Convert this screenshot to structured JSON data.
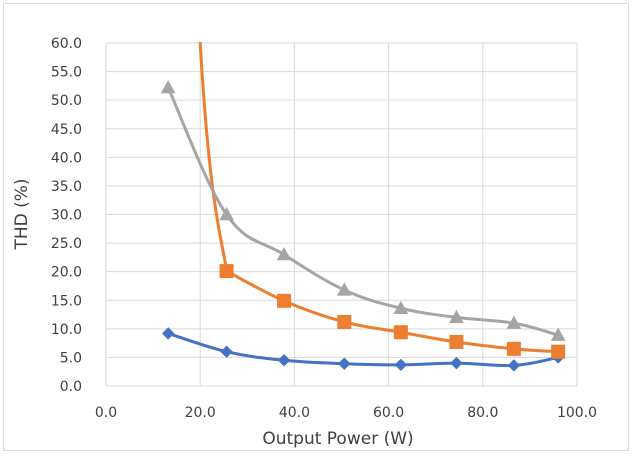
{
  "chart_data": {
    "type": "line",
    "title": "",
    "xlabel": "Output Power (W)",
    "ylabel": "THD (%)",
    "xlim": [
      0,
      100
    ],
    "ylim": [
      0,
      60
    ],
    "x_ticks": [
      "0.0",
      "20.0",
      "40.0",
      "60.0",
      "80.0",
      "100.0"
    ],
    "y_ticks": [
      "0.0",
      "5.0",
      "10.0",
      "15.0",
      "20.0",
      "25.0",
      "30.0",
      "35.0",
      "40.0",
      "45.0",
      "50.0",
      "55.0",
      "60.0"
    ],
    "grid": true,
    "legend": "none",
    "series": [
      {
        "color": "#4472c4",
        "marker": "diamond",
        "points": [
          [
            13.2,
            9.2
          ],
          [
            25.6,
            6.0
          ],
          [
            37.8,
            4.5
          ],
          [
            50.6,
            3.9
          ],
          [
            62.6,
            3.7
          ],
          [
            74.4,
            4.0
          ],
          [
            86.6,
            3.6
          ],
          [
            96.0,
            5.0
          ]
        ]
      },
      {
        "color": "#ed7d31",
        "marker": "square",
        "points": [
          [
            25.6,
            20.1
          ],
          [
            37.8,
            14.9
          ],
          [
            50.6,
            11.2
          ],
          [
            62.6,
            9.4
          ],
          [
            74.4,
            7.7
          ],
          [
            86.6,
            6.5
          ],
          [
            96.0,
            6.0
          ]
        ],
        "curve_start": [
          20.0,
          60.0
        ]
      },
      {
        "color": "#a5a5a5",
        "marker": "triangle",
        "points": [
          [
            13.2,
            52.2
          ],
          [
            25.6,
            30.0
          ],
          [
            37.8,
            23.0
          ],
          [
            50.6,
            16.8
          ],
          [
            62.6,
            13.6
          ],
          [
            74.4,
            12.0
          ],
          [
            86.6,
            11.0
          ],
          [
            96.0,
            8.9
          ]
        ]
      }
    ]
  }
}
